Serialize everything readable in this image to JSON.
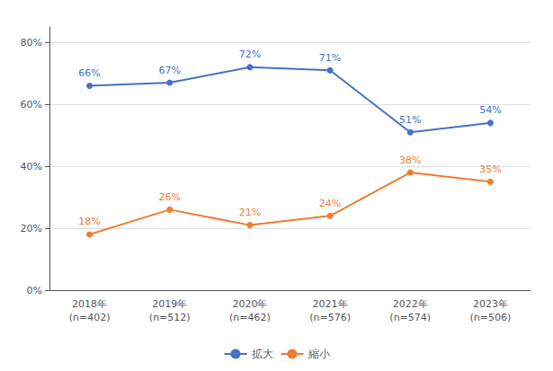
{
  "chart_data": {
    "type": "line",
    "categories": [
      "2018年\n(n=402)",
      "2019年\n(n=512)",
      "2020年\n(n=462)",
      "2021年\n(n=576)",
      "2022年\n(n=574)",
      "2023年\n(n=506)"
    ],
    "series": [
      {
        "name": "拡大",
        "color": "#4472C4",
        "values": [
          66,
          67,
          72,
          71,
          51,
          54
        ],
        "value_labels": [
          "66%",
          "67%",
          "72%",
          "71%",
          "51%",
          "54%"
        ]
      },
      {
        "name": "縮小",
        "color": "#ED7D31",
        "values": [
          18,
          26,
          21,
          24,
          38,
          35
        ],
        "value_labels": [
          "18%",
          "26%",
          "21%",
          "24%",
          "38%",
          "35%"
        ]
      }
    ],
    "ylim": [
      0,
      85
    ],
    "yticks": [
      {
        "value": 0,
        "label": "0%"
      },
      {
        "value": 20,
        "label": "20%"
      },
      {
        "value": 40,
        "label": "40%"
      },
      {
        "value": 60,
        "label": "60%"
      },
      {
        "value": 80,
        "label": "80%"
      }
    ],
    "grid": true,
    "legend": "bottom",
    "marker": "circle",
    "data_labels": true
  }
}
